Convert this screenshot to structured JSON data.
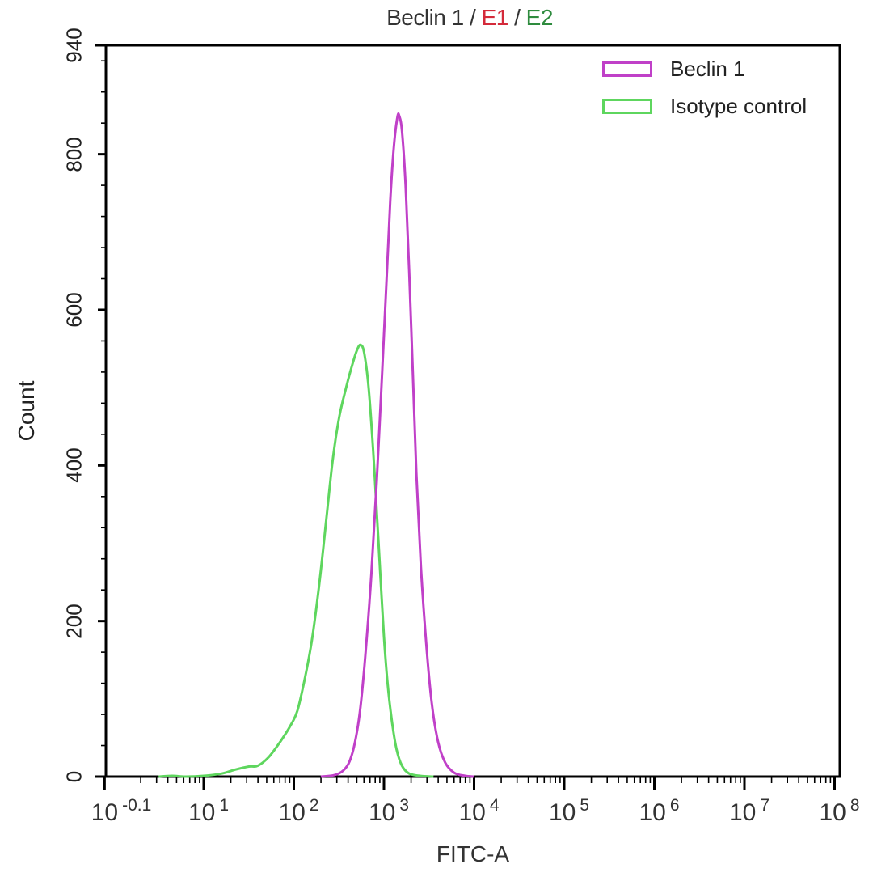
{
  "title": {
    "parts": [
      {
        "text": "Beclin 1",
        "color": "#333333"
      },
      {
        "text": " / ",
        "color": "#333333"
      },
      {
        "text": "E1",
        "color": "#d42a3a"
      },
      {
        "text": " / ",
        "color": "#333333"
      },
      {
        "text": "E2",
        "color": "#2e8b3e"
      }
    ]
  },
  "legend": {
    "items": [
      {
        "label": "Beclin 1",
        "color": "#c040c8"
      },
      {
        "label": "Isotype control",
        "color": "#5ed65e"
      }
    ]
  },
  "axes": {
    "xlabel": "FITC-A",
    "ylabel": "Count",
    "yticks": [
      {
        "value": 0,
        "label": "0"
      },
      {
        "value": 200,
        "label": "200"
      },
      {
        "value": 400,
        "label": "400"
      },
      {
        "value": 600,
        "label": "600"
      },
      {
        "value": 800,
        "label": "800"
      },
      {
        "value": 940,
        "label": "940"
      }
    ],
    "xticks": [
      {
        "exp": -0.1,
        "base": "10",
        "sup": "-0.1"
      },
      {
        "exp": 1,
        "base": "10",
        "sup": "1"
      },
      {
        "exp": 2,
        "base": "10",
        "sup": "2"
      },
      {
        "exp": 3,
        "base": "10",
        "sup": "3"
      },
      {
        "exp": 4,
        "base": "10",
        "sup": "4"
      },
      {
        "exp": 5,
        "base": "10",
        "sup": "5"
      },
      {
        "exp": 6,
        "base": "10",
        "sup": "6"
      },
      {
        "exp": 7,
        "base": "10",
        "sup": "7"
      },
      {
        "exp": 8,
        "base": "10",
        "sup": "8"
      }
    ]
  },
  "chart_data": {
    "type": "line",
    "title": "Beclin 1 / E1 / E2",
    "xlabel": "FITC-A",
    "ylabel": "Count",
    "xscale": "log10",
    "xlim_log10": [
      -0.1,
      8
    ],
    "ylim": [
      0,
      940
    ],
    "grid": false,
    "legend_position": "upper right",
    "series": [
      {
        "name": "Beclin 1",
        "color": "#c040c8",
        "peak": {
          "x": 1450,
          "y": 849
        },
        "points_log10x_y": [
          [
            2.3,
            0
          ],
          [
            2.45,
            2
          ],
          [
            2.55,
            8
          ],
          [
            2.62,
            20
          ],
          [
            2.68,
            45
          ],
          [
            2.74,
            90
          ],
          [
            2.8,
            165
          ],
          [
            2.86,
            260
          ],
          [
            2.92,
            380
          ],
          [
            2.98,
            520
          ],
          [
            3.03,
            640
          ],
          [
            3.07,
            740
          ],
          [
            3.11,
            810
          ],
          [
            3.15,
            848
          ],
          [
            3.17,
            849
          ],
          [
            3.2,
            830
          ],
          [
            3.24,
            760
          ],
          [
            3.28,
            650
          ],
          [
            3.32,
            520
          ],
          [
            3.36,
            390
          ],
          [
            3.41,
            270
          ],
          [
            3.47,
            170
          ],
          [
            3.53,
            95
          ],
          [
            3.6,
            45
          ],
          [
            3.68,
            18
          ],
          [
            3.78,
            5
          ],
          [
            3.9,
            1
          ],
          [
            4.0,
            0
          ]
        ]
      },
      {
        "name": "Isotype control",
        "color": "#5ed65e",
        "peak": {
          "x": 550,
          "y": 555
        },
        "points_log10x_y": [
          [
            0.5,
            0
          ],
          [
            0.65,
            1
          ],
          [
            0.8,
            0
          ],
          [
            1.0,
            1
          ],
          [
            1.2,
            4
          ],
          [
            1.35,
            9
          ],
          [
            1.5,
            13
          ],
          [
            1.6,
            14
          ],
          [
            1.72,
            25
          ],
          [
            1.85,
            45
          ],
          [
            1.96,
            65
          ],
          [
            2.04,
            85
          ],
          [
            2.12,
            125
          ],
          [
            2.2,
            175
          ],
          [
            2.28,
            245
          ],
          [
            2.36,
            330
          ],
          [
            2.43,
            405
          ],
          [
            2.5,
            460
          ],
          [
            2.58,
            500
          ],
          [
            2.65,
            530
          ],
          [
            2.7,
            548
          ],
          [
            2.74,
            555
          ],
          [
            2.78,
            545
          ],
          [
            2.83,
            500
          ],
          [
            2.88,
            420
          ],
          [
            2.92,
            340
          ],
          [
            2.96,
            260
          ],
          [
            3.0,
            180
          ],
          [
            3.04,
            120
          ],
          [
            3.09,
            70
          ],
          [
            3.14,
            35
          ],
          [
            3.2,
            14
          ],
          [
            3.28,
            4
          ],
          [
            3.4,
            1
          ],
          [
            3.55,
            0
          ]
        ]
      }
    ]
  }
}
